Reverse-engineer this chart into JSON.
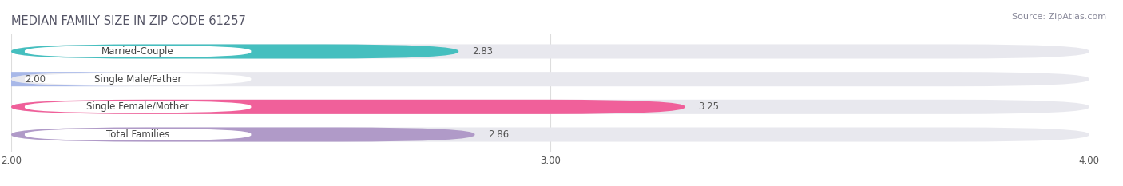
{
  "title": "MEDIAN FAMILY SIZE IN ZIP CODE 61257",
  "source": "Source: ZipAtlas.com",
  "categories": [
    "Married-Couple",
    "Single Male/Father",
    "Single Female/Mother",
    "Total Families"
  ],
  "values": [
    2.83,
    2.0,
    3.25,
    2.86
  ],
  "bar_colors": [
    "#45bfbf",
    "#a8b8e8",
    "#f0609a",
    "#b09ac8"
  ],
  "xlim": [
    2.0,
    4.0
  ],
  "xticks": [
    2.0,
    3.0,
    4.0
  ],
  "xtick_labels": [
    "2.00",
    "3.00",
    "4.00"
  ],
  "bar_height": 0.52,
  "background_color": "#ffffff",
  "bar_track_color": "#e8e8ee",
  "label_box_color": "#ffffff",
  "title_fontsize": 10.5,
  "source_fontsize": 8,
  "label_fontsize": 8.5,
  "value_fontsize": 8.5,
  "title_color": "#555566",
  "source_color": "#888899",
  "label_color": "#444444",
  "value_color": "#555555"
}
